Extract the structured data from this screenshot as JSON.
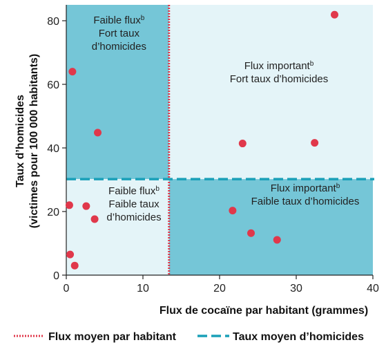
{
  "chart_data": {
    "type": "scatter",
    "xlabel": "Flux de cocaïne par habitant (grammes)",
    "ylabel_lines": [
      "Taux d’homicides",
      "(victimes pour 100 000 habitants)"
    ],
    "xlim": [
      0,
      40
    ],
    "ylim": [
      0,
      85
    ],
    "xticks": [
      0,
      10,
      20,
      30,
      40
    ],
    "yticks": [
      0,
      20,
      40,
      60,
      80
    ],
    "reference_lines": {
      "mean_flux": 13.4,
      "mean_homicide": 30.2
    },
    "points": [
      {
        "x": 0.4,
        "y": 22
      },
      {
        "x": 0.8,
        "y": 64
      },
      {
        "x": 0.5,
        "y": 6.5
      },
      {
        "x": 1.1,
        "y": 3
      },
      {
        "x": 2.6,
        "y": 21.7
      },
      {
        "x": 3.7,
        "y": 17.6
      },
      {
        "x": 4.1,
        "y": 44.8
      },
      {
        "x": 21.7,
        "y": 20.3
      },
      {
        "x": 23.0,
        "y": 41.4
      },
      {
        "x": 24.1,
        "y": 13.2
      },
      {
        "x": 27.5,
        "y": 11.1
      },
      {
        "x": 32.4,
        "y": 41.6
      },
      {
        "x": 35.0,
        "y": 81.9
      }
    ],
    "quadrants": [
      {
        "id": "top-left",
        "line1": "Faible flux",
        "line1_sup": "b",
        "line2": "Fort taux",
        "line3": "d’homicides"
      },
      {
        "id": "top-right",
        "line1": "Flux important",
        "line1_sup": "b",
        "line2": "Fort taux d’homicides",
        "line3": ""
      },
      {
        "id": "bottom-left",
        "line1": "Faible flux",
        "line1_sup": "b",
        "line2": "Faible taux",
        "line3": "d’homicides"
      },
      {
        "id": "bottom-right",
        "line1": "Flux important",
        "line1_sup": "b",
        "line2": "Faible taux d’homicides",
        "line3": ""
      }
    ],
    "legend": [
      {
        "label": "Flux moyen par habitant",
        "style": "dotted"
      },
      {
        "label": "Taux moyen d’homicides",
        "style": "dashed"
      }
    ],
    "colors": {
      "point": "#e0384b",
      "flux_line": "#e0384b",
      "homicide_line": "#1aa0b8",
      "quad_dark": "#75c6d7",
      "quad_light": "#e4f4f8",
      "axis": "#222222"
    }
  }
}
